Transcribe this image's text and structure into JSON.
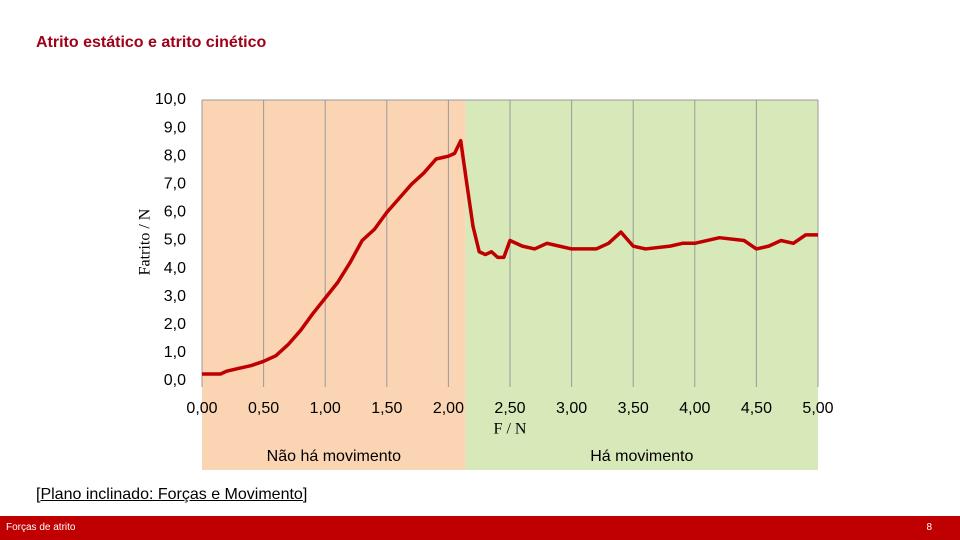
{
  "header": {
    "title": "Atrito estático e atrito cinético"
  },
  "chart_data": {
    "type": "line",
    "x_label": "F / N",
    "y_label": "Fatrito / N",
    "xlim": [
      0,
      5
    ],
    "ylim": [
      0,
      10
    ],
    "xticks": [
      {
        "value": 0,
        "label": "0,00"
      },
      {
        "value": 0.5,
        "label": "0,50"
      },
      {
        "value": 1,
        "label": "1,00"
      },
      {
        "value": 1.5,
        "label": "1,50"
      },
      {
        "value": 2,
        "label": "2,00"
      },
      {
        "value": 2.5,
        "label": "2,50"
      },
      {
        "value": 3,
        "label": "3,00"
      },
      {
        "value": 3.5,
        "label": "3,50"
      },
      {
        "value": 4,
        "label": "4,00"
      },
      {
        "value": 4.5,
        "label": "4,50"
      },
      {
        "value": 5,
        "label": "5,00"
      }
    ],
    "yticks": [
      {
        "value": 0,
        "label": "0,0"
      },
      {
        "value": 1,
        "label": "1,0"
      },
      {
        "value": 2,
        "label": "2,0"
      },
      {
        "value": 3,
        "label": "3,0"
      },
      {
        "value": 4,
        "label": "4,0"
      },
      {
        "value": 5,
        "label": "5,0"
      },
      {
        "value": 6,
        "label": "6,0"
      },
      {
        "value": 7,
        "label": "7,0"
      },
      {
        "value": 8,
        "label": "8,0"
      },
      {
        "value": 9,
        "label": "9,0"
      },
      {
        "value": 10,
        "label": "10,0"
      }
    ],
    "grid": true,
    "regions": [
      {
        "label": "Não há movimento",
        "from": 0,
        "to": 2.14,
        "color": "#fbd4b4"
      },
      {
        "label": "Há movimento",
        "from": 2.14,
        "to": 5,
        "color": "#d7e9b9"
      }
    ],
    "series": [
      {
        "color": "#c00000",
        "x": [
          0,
          0.15,
          0.2,
          0.3,
          0.4,
          0.5,
          0.6,
          0.7,
          0.8,
          0.9,
          1.0,
          1.1,
          1.2,
          1.3,
          1.4,
          1.5,
          1.6,
          1.7,
          1.8,
          1.9,
          2.0,
          2.05,
          2.1,
          2.15,
          2.2,
          2.25,
          2.3,
          2.35,
          2.4,
          2.45,
          2.5,
          2.6,
          2.7,
          2.8,
          2.9,
          3.0,
          3.2,
          3.3,
          3.4,
          3.5,
          3.6,
          3.8,
          3.9,
          4.0,
          4.2,
          4.4,
          4.5,
          4.6,
          4.7,
          4.8,
          4.9,
          5.0
        ],
        "values": [
          0.25,
          0.25,
          0.35,
          0.45,
          0.55,
          0.7,
          0.9,
          1.3,
          1.8,
          2.4,
          2.95,
          3.5,
          4.2,
          5.0,
          5.4,
          6.0,
          6.5,
          7.0,
          7.4,
          7.9,
          8.0,
          8.1,
          8.55,
          7.0,
          5.5,
          4.6,
          4.5,
          4.6,
          4.4,
          4.4,
          5.0,
          4.8,
          4.7,
          4.9,
          4.8,
          4.7,
          4.7,
          4.9,
          5.3,
          4.8,
          4.7,
          4.8,
          4.9,
          4.9,
          5.1,
          5.0,
          4.7,
          4.8,
          5.0,
          4.9,
          5.2,
          5.2
        ]
      }
    ]
  },
  "reference": {
    "prefix": "[",
    "link": "Plano inclinado: Forças e Movimento",
    "suffix": "]"
  },
  "footer": {
    "left": "Forças de atrito",
    "page": "8"
  }
}
